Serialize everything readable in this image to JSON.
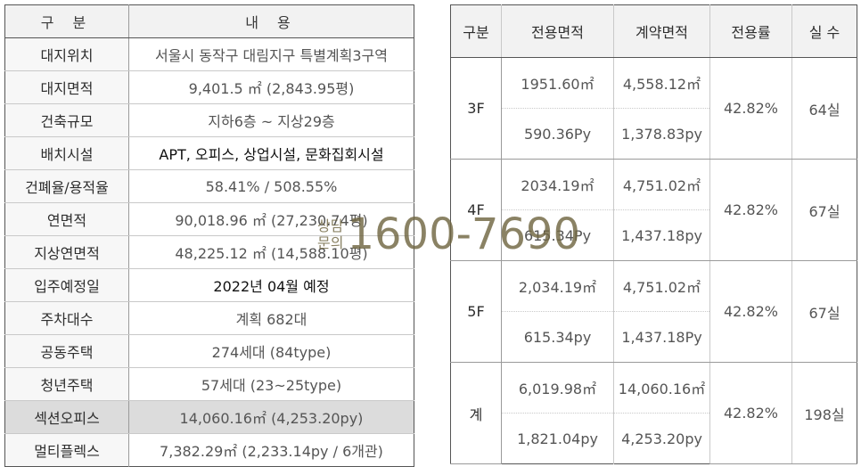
{
  "left_table": {
    "header": {
      "label": "구 분",
      "content": "내 용"
    },
    "rows": [
      {
        "label": "대지위치",
        "value": "서울시 동작구 대림지구 특별계획3구역"
      },
      {
        "label": "대지면적",
        "value": "9,401.5 ㎡ (2,843.95평)"
      },
      {
        "label": "건축규모",
        "value": "지하6층 ~ 지상29층"
      },
      {
        "label": "배치시설",
        "value": "APT, 오피스, 상업시설, 문화집회시설"
      },
      {
        "label": "건폐율/용적율",
        "value": "58.41% / 508.55%"
      },
      {
        "label": "연면적",
        "value": "90,018.96 ㎡ (27,230.74평)"
      },
      {
        "label": "지상연면적",
        "value": "48,225.12 ㎡ (14,588.10평)"
      },
      {
        "label": "입주예정일",
        "value": "2022년 04월 예정"
      },
      {
        "label": "주차대수",
        "value": "계획 682대"
      },
      {
        "label": "공동주택",
        "value": "274세대 (84type)"
      },
      {
        "label": "청년주택",
        "value": "57세대 (23~25type)"
      },
      {
        "label": "섹션오피스",
        "value": "14,060.16㎡ (4,253.20py)"
      },
      {
        "label": "멀티플렉스",
        "value": "7,382.29㎡ (2,233.14py / 6개관)"
      }
    ]
  },
  "right_table": {
    "headers": [
      "구분",
      "전용면적",
      "계약면적",
      "전용률",
      "실 수"
    ],
    "groups": [
      {
        "floor": "3F",
        "exclusive_m2": "1951.60㎡",
        "contract_m2": "4,558.12㎡",
        "exclusive_py": "590.36Py",
        "contract_py": "1,378.83py",
        "ratio": "42.82%",
        "units": "64실"
      },
      {
        "floor": "4F",
        "exclusive_m2": "2034.19㎡",
        "contract_m2": "4,751.02㎡",
        "exclusive_py": "615.34Py",
        "contract_py": "1,437.18py",
        "ratio": "42.82%",
        "units": "67실"
      },
      {
        "floor": "5F",
        "exclusive_m2": "2,034.19㎡",
        "contract_m2": "4,751.02㎡",
        "exclusive_py": "615.34py",
        "contract_py": "1,437.18Py",
        "ratio": "42.82%",
        "units": "67실"
      },
      {
        "floor": "계",
        "exclusive_m2": "6,019.98㎡",
        "contract_m2": "14,060.16㎡",
        "exclusive_py": "1,821.04py",
        "contract_py": "4,253.20py",
        "ratio": "42.82%",
        "units": "198실"
      }
    ]
  },
  "watermark": {
    "line1": "상담",
    "line2": "문의",
    "phone": "1600-7690"
  },
  "colors": {
    "header_bg": "#f2f2f2",
    "highlight_row_bg": "#dcdcdc",
    "watermark": "#706742"
  }
}
